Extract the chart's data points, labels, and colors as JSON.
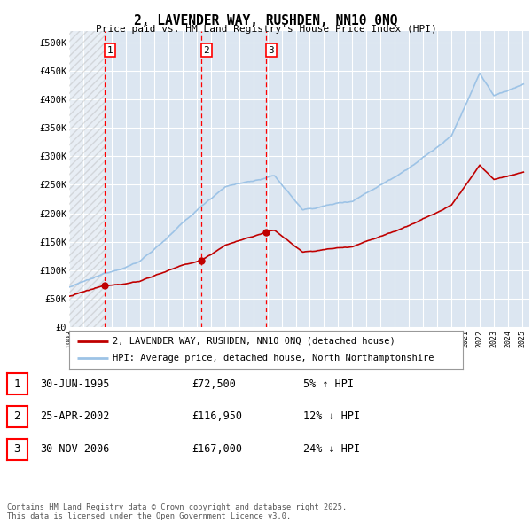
{
  "title": "2, LAVENDER WAY, RUSHDEN, NN10 0NQ",
  "subtitle": "Price paid vs. HM Land Registry's House Price Index (HPI)",
  "ylim": [
    0,
    520000
  ],
  "yticks": [
    0,
    50000,
    100000,
    150000,
    200000,
    250000,
    300000,
    350000,
    400000,
    450000,
    500000
  ],
  "ytick_labels": [
    "£0",
    "£50K",
    "£100K",
    "£150K",
    "£200K",
    "£250K",
    "£300K",
    "£350K",
    "£400K",
    "£450K",
    "£500K"
  ],
  "bg_color": "#dce6f1",
  "grid_color": "#ffffff",
  "legend_house": "2, LAVENDER WAY, RUSHDEN, NN10 0NQ (detached house)",
  "legend_hpi": "HPI: Average price, detached house, North Northamptonshire",
  "table_rows": [
    [
      "1",
      "30-JUN-1995",
      "£72,500",
      "5% ↑ HPI"
    ],
    [
      "2",
      "25-APR-2002",
      "£116,950",
      "12% ↓ HPI"
    ],
    [
      "3",
      "30-NOV-2006",
      "£167,000",
      "24% ↓ HPI"
    ]
  ],
  "footnote": "Contains HM Land Registry data © Crown copyright and database right 2025.\nThis data is licensed under the Open Government Licence v3.0.",
  "house_color": "#c00000",
  "hpi_color": "#9dc3e6",
  "vline_color": "#ff0000",
  "sale_year_nums": [
    1995.5,
    2002.33,
    2006.92
  ],
  "sale_prices": [
    72500,
    116950,
    167000
  ],
  "sale_labels": [
    "1",
    "2",
    "3"
  ],
  "xmin": 1993.0,
  "xmax": 2025.5
}
